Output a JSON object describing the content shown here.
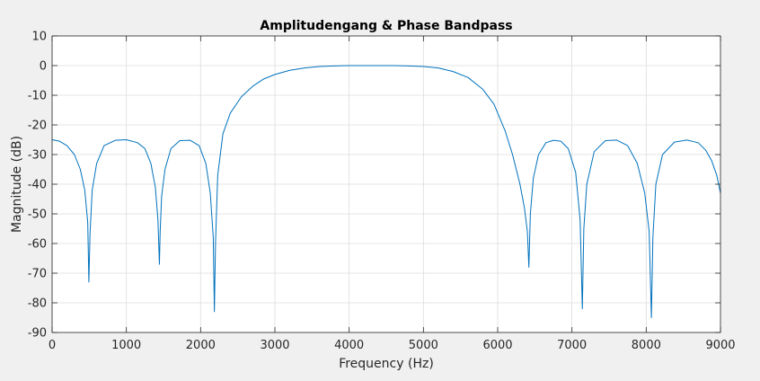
{
  "chart_data": {
    "type": "line",
    "title": "Amplitudengang & Phase Bandpass",
    "xlabel": "Frequency (Hz)",
    "ylabel": "Magnitude (dB)",
    "xlim": [
      0,
      9000
    ],
    "ylim": [
      -90,
      10
    ],
    "xticks": [
      0,
      1000,
      2000,
      3000,
      4000,
      5000,
      6000,
      7000,
      8000,
      9000
    ],
    "yticks": [
      10,
      0,
      -10,
      -20,
      -30,
      -40,
      -50,
      -60,
      -70,
      -80,
      -90
    ],
    "grid": true,
    "colors": {
      "series": "#0072bd",
      "axes_bg": "#ffffff",
      "figure_bg": "#f0f0f0",
      "grid": "#dcdcdc"
    },
    "series": [
      {
        "x": [
          0,
          100,
          200,
          300,
          380,
          440,
          480,
          495,
          510,
          540,
          600,
          700,
          850,
          1000,
          1150,
          1250,
          1330,
          1390,
          1425,
          1445,
          1455,
          1475,
          1520,
          1600,
          1720,
          1860,
          1980,
          2070,
          2130,
          2170,
          2185,
          2200,
          2230,
          2300,
          2400,
          2550,
          2700,
          2850,
          3000,
          3200,
          3400,
          3600,
          3800,
          4000,
          4200,
          4400,
          4600,
          4800,
          5000,
          5200,
          5400,
          5600,
          5800,
          5950,
          6100,
          6200,
          6300,
          6360,
          6400,
          6420,
          6440,
          6480,
          6550,
          6650,
          6750,
          6850,
          6950,
          7050,
          7110,
          7140,
          7160,
          7200,
          7300,
          7450,
          7600,
          7750,
          7880,
          7980,
          8040,
          8070,
          8090,
          8130,
          8220,
          8380,
          8550,
          8700,
          8800,
          8880,
          8950,
          9000
        ],
        "y": [
          -25,
          -25.5,
          -27,
          -30,
          -35,
          -42,
          -53,
          -73,
          -57,
          -42,
          -33,
          -27,
          -25.2,
          -25,
          -26,
          -28,
          -33,
          -41,
          -52,
          -67,
          -56,
          -44,
          -35,
          -28,
          -25.3,
          -25.2,
          -27,
          -33,
          -43,
          -58,
          -83,
          -60,
          -37,
          -23,
          -16,
          -10.5,
          -7,
          -4.5,
          -3,
          -1.6,
          -0.8,
          -0.3,
          -0.1,
          0,
          0,
          0,
          0,
          -0.1,
          -0.3,
          -0.8,
          -2,
          -4,
          -8,
          -13,
          -22,
          -30,
          -40,
          -48,
          -56,
          -68,
          -50,
          -38,
          -30,
          -26,
          -25.2,
          -25.5,
          -28,
          -36,
          -52,
          -82,
          -55,
          -40,
          -29,
          -25.3,
          -25.1,
          -27,
          -33,
          -43,
          -56,
          -85,
          -58,
          -40,
          -30,
          -25.8,
          -25.1,
          -26,
          -28.5,
          -32,
          -37,
          -43
        ]
      }
    ]
  }
}
